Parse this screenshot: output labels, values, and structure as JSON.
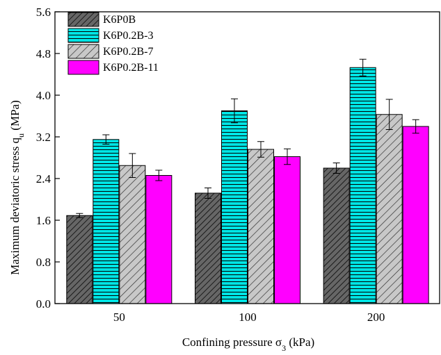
{
  "chart_data": {
    "type": "bar",
    "xlabel": "Confining pressure σ",
    "xlabel_sub": "3",
    "xlabel_unit": " (kPa)",
    "ylabel": "Maximum deviatoric stress q",
    "ylabel_sub": "u",
    "ylabel_unit": " (MPa)",
    "categories": [
      "50",
      "100",
      "200"
    ],
    "ylim": [
      0.0,
      5.6
    ],
    "yticks": [
      "0.0",
      "0.8",
      "1.6",
      "2.4",
      "3.2",
      "4.0",
      "4.8",
      "5.6"
    ],
    "grid": false,
    "legend_position": "top-left",
    "series": [
      {
        "name": "K6P0B",
        "values": [
          1.69,
          2.12,
          2.6
        ],
        "errors": [
          0.04,
          0.1,
          0.1
        ],
        "fill": "#666666",
        "pattern": "diag-dense"
      },
      {
        "name": "K6P0.2B-3",
        "values": [
          3.15,
          3.7,
          4.53
        ],
        "errors": [
          0.09,
          0.23,
          0.16
        ],
        "fill": "#00e5e5",
        "pattern": "horizontal"
      },
      {
        "name": "K6P0.2B-7",
        "values": [
          2.65,
          2.96,
          3.63
        ],
        "errors": [
          0.23,
          0.15,
          0.29
        ],
        "fill": "#c0c0c0",
        "pattern": "diag-sparse"
      },
      {
        "name": "K6P0.2B-11",
        "values": [
          2.46,
          2.82,
          3.4
        ],
        "errors": [
          0.1,
          0.15,
          0.13
        ],
        "fill": "#ff00ff",
        "pattern": "none"
      }
    ]
  }
}
